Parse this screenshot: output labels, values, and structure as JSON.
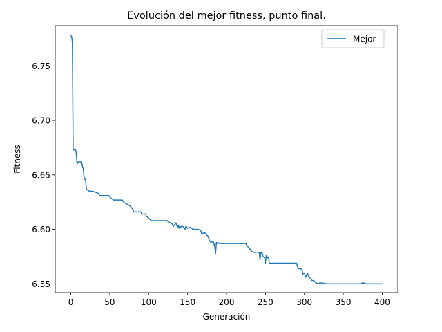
{
  "chart_data": {
    "type": "line",
    "title": "Evolución del mejor fitness, punto final.",
    "xlabel": "Generación",
    "ylabel": "Fitness",
    "xlim": [
      -20,
      420
    ],
    "ylim": [
      6.542,
      6.787
    ],
    "xticks": [
      0,
      50,
      100,
      150,
      200,
      250,
      300,
      350,
      400
    ],
    "yticks": [
      6.55,
      6.6,
      6.65,
      6.7,
      6.75
    ],
    "ytick_labels": [
      "6.55",
      "6.60",
      "6.65",
      "6.70",
      "6.75"
    ],
    "grid": false,
    "legend": {
      "placement": "top-right"
    },
    "colors": {
      "series": "#1f77b4"
    },
    "series": [
      {
        "name": "Mejor",
        "x": [
          0,
          1,
          2,
          3,
          5,
          6,
          7,
          8,
          9,
          10,
          14,
          15,
          16,
          17,
          18,
          19,
          20,
          22,
          24,
          28,
          32,
          36,
          37,
          49,
          51,
          55,
          66,
          68,
          70,
          73,
          77,
          79,
          81,
          90,
          91,
          96,
          97,
          99,
          102,
          104,
          124,
          125,
          128,
          130,
          132,
          135,
          137,
          138,
          139,
          140,
          141,
          143,
          145,
          147,
          148,
          150,
          153,
          155,
          157,
          160,
          164,
          167,
          168,
          172,
          174,
          176,
          178,
          180,
          183,
          185,
          186,
          187,
          188,
          189,
          191,
          193,
          196,
          198,
          201,
          205,
          210,
          220,
          225,
          226,
          229,
          232,
          234,
          236,
          238,
          240,
          242,
          243,
          244,
          245,
          246,
          247,
          249,
          250,
          251,
          252,
          253,
          254,
          255,
          257,
          260,
          270,
          280,
          290,
          292,
          295,
          297,
          298,
          300,
          302,
          304,
          306,
          308,
          310,
          312,
          315,
          318,
          320,
          330,
          340,
          350,
          360,
          370,
          372,
          375,
          380,
          390,
          400
        ],
        "y": [
          6.778,
          6.777,
          6.772,
          6.673,
          6.673,
          6.673,
          6.67,
          6.66,
          6.662,
          6.662,
          6.662,
          6.657,
          6.656,
          6.648,
          6.646,
          6.646,
          6.637,
          6.636,
          6.635,
          6.635,
          6.634,
          6.633,
          6.631,
          6.631,
          6.629,
          6.627,
          6.627,
          6.625,
          6.624,
          6.623,
          6.621,
          6.619,
          6.616,
          6.616,
          6.614,
          6.614,
          6.612,
          6.611,
          6.609,
          6.608,
          6.608,
          6.607,
          6.606,
          6.605,
          6.603,
          6.606,
          6.602,
          6.604,
          6.601,
          6.603,
          6.602,
          6.603,
          6.602,
          6.6,
          6.603,
          6.601,
          6.602,
          6.601,
          6.6,
          6.6,
          6.6,
          6.599,
          6.596,
          6.597,
          6.595,
          6.594,
          6.59,
          6.588,
          6.589,
          6.584,
          6.578,
          6.588,
          6.587,
          6.588,
          6.587,
          6.587,
          6.587,
          6.587,
          6.587,
          6.587,
          6.587,
          6.587,
          6.587,
          6.585,
          6.583,
          6.58,
          6.579,
          6.579,
          6.579,
          6.579,
          6.579,
          6.572,
          6.579,
          6.578,
          6.578,
          6.575,
          6.574,
          6.569,
          6.576,
          6.574,
          6.574,
          6.575,
          6.569,
          6.569,
          6.569,
          6.569,
          6.569,
          6.569,
          6.564,
          6.564,
          6.563,
          6.559,
          6.56,
          6.556,
          6.56,
          6.556,
          6.555,
          6.553,
          6.553,
          6.551,
          6.55,
          6.551,
          6.55,
          6.55,
          6.55,
          6.55,
          6.55,
          6.55,
          6.551,
          6.55,
          6.55,
          6.55
        ]
      }
    ]
  }
}
